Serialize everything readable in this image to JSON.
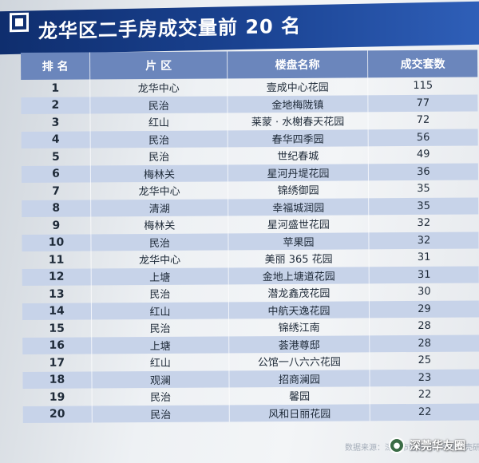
{
  "header": {
    "title": "龙华区二手房成交量前 20 名"
  },
  "table": {
    "columns": {
      "rank": "排 名",
      "district": "片 区",
      "estate": "楼盘名称",
      "count": "成交套数"
    },
    "rows": [
      {
        "rank": "1",
        "district": "龙华中心",
        "estate": "壹成中心花园",
        "count": "115"
      },
      {
        "rank": "2",
        "district": "民治",
        "estate": "金地梅陇镇",
        "count": "77"
      },
      {
        "rank": "3",
        "district": "红山",
        "estate": "莱蒙 · 水榭春天花园",
        "count": "72"
      },
      {
        "rank": "4",
        "district": "民治",
        "estate": "春华四季园",
        "count": "56"
      },
      {
        "rank": "5",
        "district": "民治",
        "estate": "世纪春城",
        "count": "49"
      },
      {
        "rank": "6",
        "district": "梅林关",
        "estate": "星河丹堤花园",
        "count": "36"
      },
      {
        "rank": "7",
        "district": "龙华中心",
        "estate": "锦绣御园",
        "count": "35"
      },
      {
        "rank": "8",
        "district": "清湖",
        "estate": "幸福城润园",
        "count": "35"
      },
      {
        "rank": "9",
        "district": "梅林关",
        "estate": "星河盛世花园",
        "count": "32"
      },
      {
        "rank": "10",
        "district": "民治",
        "estate": "苹果园",
        "count": "32"
      },
      {
        "rank": "11",
        "district": "龙华中心",
        "estate": "美丽 365 花园",
        "count": "31"
      },
      {
        "rank": "12",
        "district": "上塘",
        "estate": "金地上塘道花园",
        "count": "31"
      },
      {
        "rank": "13",
        "district": "民治",
        "estate": "潜龙鑫茂花园",
        "count": "30"
      },
      {
        "rank": "14",
        "district": "红山",
        "estate": "中航天逸花园",
        "count": "29"
      },
      {
        "rank": "15",
        "district": "民治",
        "estate": "锦绣江南",
        "count": "28"
      },
      {
        "rank": "16",
        "district": "上塘",
        "estate": "荟港尊邸",
        "count": "28"
      },
      {
        "rank": "17",
        "district": "红山",
        "estate": "公馆一八六六花园",
        "count": "25"
      },
      {
        "rank": "18",
        "district": "观澜",
        "estate": "招商澜园",
        "count": "23"
      },
      {
        "rank": "19",
        "district": "民治",
        "estate": "馨园",
        "count": "22"
      },
      {
        "rank": "20",
        "district": "民治",
        "estate": "风和日丽花园",
        "count": "22"
      }
    ]
  },
  "footer": {
    "source": "数据来源：深圳市住建局，深圳贝壳研",
    "watermark": "深莞华友圈",
    "watermark_icon": "wechat-icon"
  },
  "colors": {
    "title_bar": "#1b4494",
    "header_row": "#6b86bc",
    "alt_row": "#c7d3e9"
  }
}
